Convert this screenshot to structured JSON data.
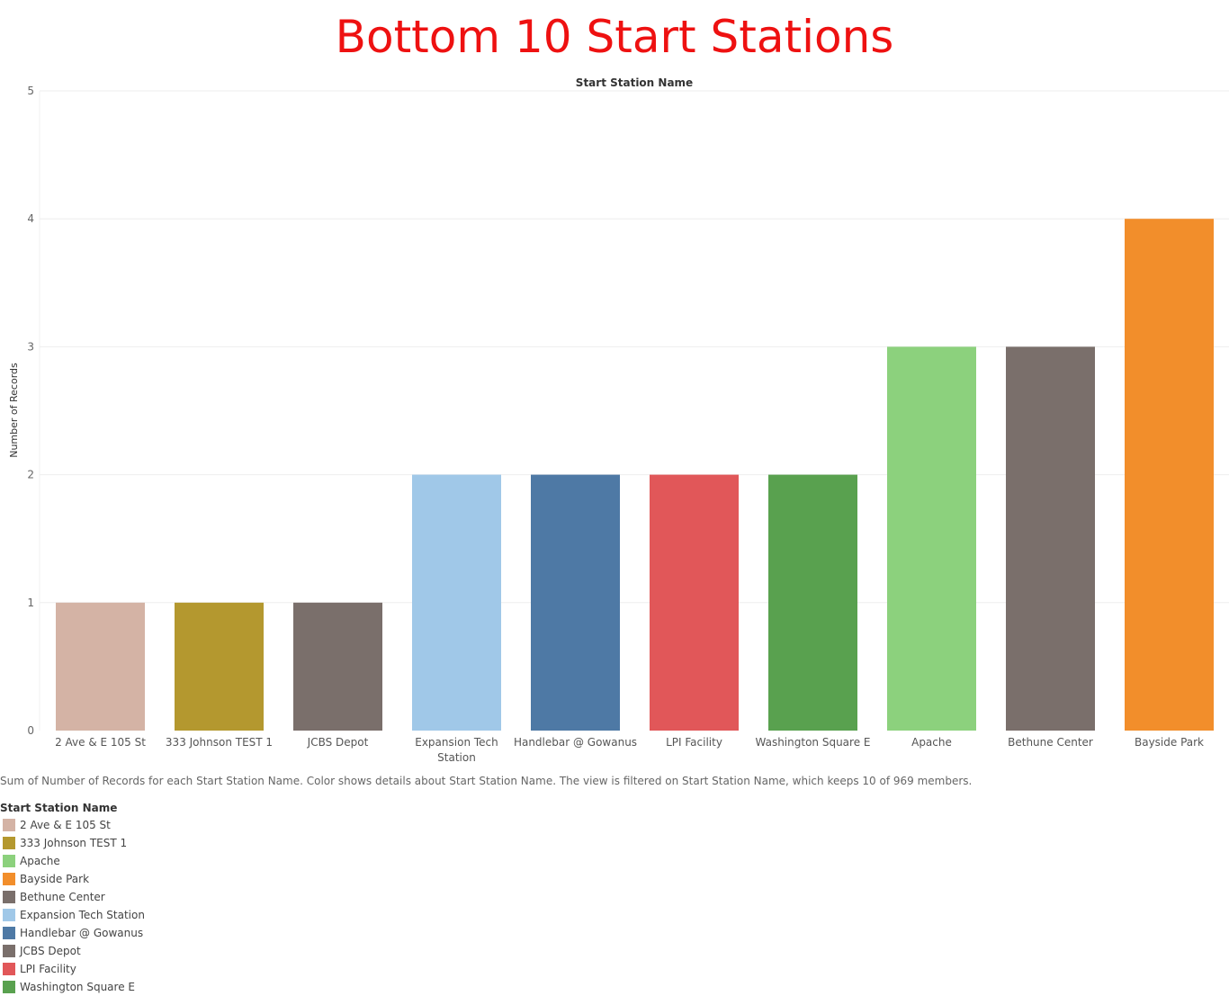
{
  "chart_data": {
    "type": "bar",
    "title": "Bottom 10 Start Stations",
    "column_header": "Start Station Name",
    "ylabel": "Number of Records",
    "ylim": [
      0,
      5
    ],
    "yticks": [
      0,
      1,
      2,
      3,
      4,
      5
    ],
    "grid": true,
    "categories": [
      "2 Ave & E 105 St",
      "333 Johnson TEST 1",
      "JCBS Depot",
      "Expansion Tech Station",
      "Handlebar @ Gowanus",
      "LPI Facility",
      "Washington Square E",
      "Apache",
      "Bethune Center",
      "Bayside Park"
    ],
    "values": [
      1,
      1,
      1,
      2,
      2,
      2,
      2,
      3,
      3,
      4
    ],
    "colors": [
      "#d4b3a5",
      "#b4982f",
      "#7a6f6b",
      "#a0c8e8",
      "#4e79a5",
      "#e15759",
      "#59a14f",
      "#8cd17d",
      "#7a6f6b",
      "#f28e2b"
    ],
    "caption": "Sum of Number of Records for each Start Station Name.  Color shows details about Start Station Name. The view is filtered on Start Station Name, which keeps 10 of 969 members.",
    "legend": {
      "title": "Start Station Name",
      "position": "bottom-left",
      "items": [
        {
          "label": "2 Ave & E 105 St",
          "color": "#d4b3a5"
        },
        {
          "label": "333 Johnson TEST 1",
          "color": "#b4982f"
        },
        {
          "label": "Apache",
          "color": "#8cd17d"
        },
        {
          "label": "Bayside Park",
          "color": "#f28e2b"
        },
        {
          "label": "Bethune Center",
          "color": "#7a6f6b"
        },
        {
          "label": "Expansion Tech Station",
          "color": "#a0c8e8"
        },
        {
          "label": "Handlebar @ Gowanus",
          "color": "#4e79a5"
        },
        {
          "label": "JCBS Depot",
          "color": "#7a6f6b"
        },
        {
          "label": "LPI Facility",
          "color": "#e15759"
        },
        {
          "label": "Washington Square E",
          "color": "#59a14f"
        }
      ]
    }
  }
}
